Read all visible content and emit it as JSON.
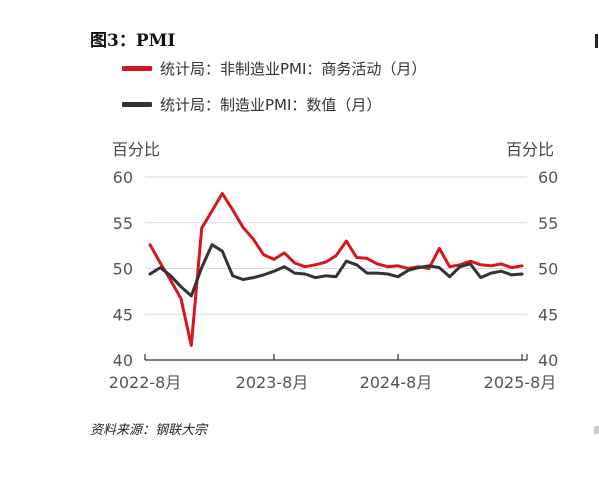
{
  "figure": {
    "title": "图3：PMI",
    "source": "资料来源：钢联大宗"
  },
  "chart_data": {
    "type": "line",
    "title": "图3：PMI",
    "y_unit_left": "百分比",
    "y_unit_right": "百分比",
    "ylim": [
      40,
      60
    ],
    "yticks": [
      "40",
      "45",
      "50",
      "55",
      "60"
    ],
    "xticks": [
      "2022-8月",
      "2023-8月",
      "2024-8月",
      "2025-8月"
    ],
    "x": [
      "2022-08",
      "2022-09",
      "2022-10",
      "2022-11",
      "2022-12",
      "2023-01",
      "2023-02",
      "2023-03",
      "2023-04",
      "2023-05",
      "2023-06",
      "2023-07",
      "2023-08",
      "2023-09",
      "2023-10",
      "2023-11",
      "2023-12",
      "2024-01",
      "2024-02",
      "2024-03",
      "2024-04",
      "2024-05",
      "2024-06",
      "2024-07",
      "2024-08",
      "2024-09",
      "2024-10",
      "2024-11",
      "2024-12",
      "2025-01",
      "2025-02",
      "2025-03",
      "2025-04",
      "2025-05",
      "2025-06",
      "2025-07",
      "2025-08"
    ],
    "series": [
      {
        "name": "统计局：非制造业PMI：商务活动（月）",
        "color": "#d7161e",
        "values": [
          52.6,
          50.6,
          48.7,
          46.7,
          41.6,
          54.4,
          56.3,
          58.2,
          56.4,
          54.5,
          53.2,
          51.5,
          51.0,
          51.7,
          50.6,
          50.2,
          50.4,
          50.7,
          51.4,
          53.0,
          51.2,
          51.1,
          50.5,
          50.2,
          50.3,
          50.0,
          50.2,
          50.0,
          52.2,
          50.2,
          50.4,
          50.8,
          50.4,
          50.3,
          50.5,
          50.1,
          50.3
        ]
      },
      {
        "name": "统计局：制造业PMI：数值（月）",
        "color": "#333333",
        "values": [
          49.4,
          50.1,
          49.2,
          48.0,
          47.0,
          50.1,
          52.6,
          51.9,
          49.2,
          48.8,
          49.0,
          49.3,
          49.7,
          50.2,
          49.5,
          49.4,
          49.0,
          49.2,
          49.1,
          50.8,
          50.4,
          49.5,
          49.5,
          49.4,
          49.1,
          49.8,
          50.1,
          50.3,
          50.1,
          49.1,
          50.2,
          50.5,
          49.0,
          49.5,
          49.7,
          49.3,
          49.4
        ]
      }
    ],
    "grid": true
  }
}
